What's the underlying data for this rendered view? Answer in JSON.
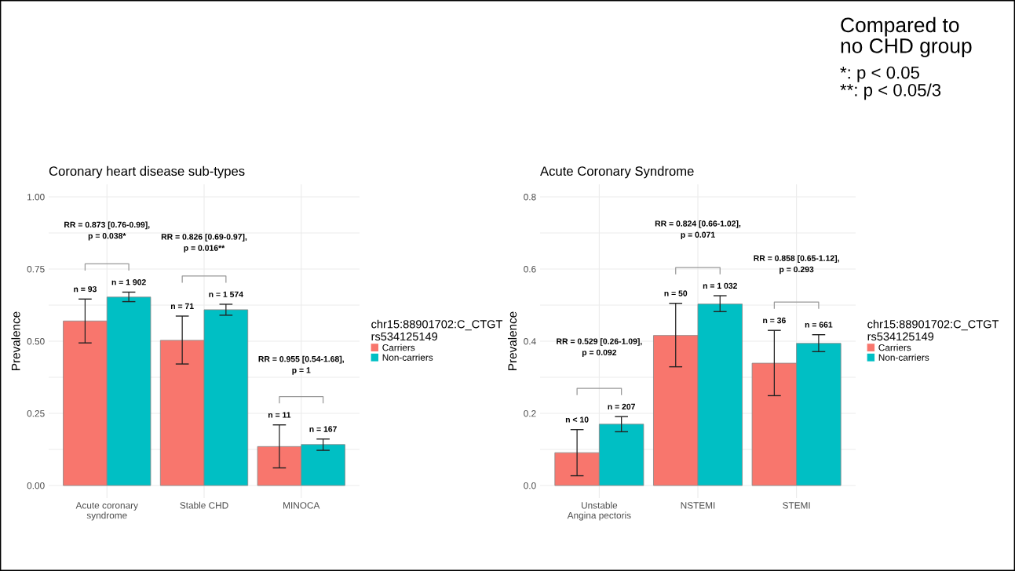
{
  "chart_data": [
    {
      "type": "bar",
      "title": "Coronary heart disease sub-types",
      "ylabel": "Prevalence",
      "legend_title": "chr15:88901702:C_CTGT\nrs534125149",
      "categories": [
        "Acute coronary\nsyndrome",
        "Stable CHD",
        "MINOCA"
      ],
      "series": [
        {
          "name": "Carriers",
          "color": "#f8766d",
          "values": [
            0.57,
            0.503,
            0.135
          ],
          "errors": [
            [
              0.494,
              0.646
            ],
            [
              0.421,
              0.587
            ],
            [
              0.061,
              0.21
            ]
          ]
        },
        {
          "name": "Non-carriers",
          "color": "#00bfc4",
          "values": [
            0.653,
            0.609,
            0.142
          ],
          "errors": [
            [
              0.637,
              0.67
            ],
            [
              0.59,
              0.628
            ],
            [
              0.122,
              0.161
            ]
          ]
        }
      ],
      "ylim": [
        -0.0435,
        1.0435
      ],
      "yticks": [
        {
          "value": 0,
          "label": "0.00"
        },
        {
          "value": 0.125,
          "label": null
        },
        {
          "value": 0.25,
          "label": "0.25"
        },
        {
          "value": 0.375,
          "label": null
        },
        {
          "value": 0.5,
          "label": "0.50"
        },
        {
          "value": 0.625,
          "label": null
        },
        {
          "value": 0.75,
          "label": "0.75"
        },
        {
          "value": 0.875,
          "label": null
        },
        {
          "value": 1,
          "label": "1.00"
        }
      ],
      "grid": true,
      "legend": "right",
      "annotations": [
        "n = 93",
        "n = 71",
        "n = 11",
        "n = 1 902",
        "n = 1 574",
        "n = 167",
        "RR = 0.873 [0.76-0.99],\np = 0.038*",
        "RR = 0.826 [0.69-0.97],\np = 0.016**",
        "RR = 0.955 [0.54-1.68],\np = 1"
      ]
    },
    {
      "type": "bar",
      "title": "Acute Coronary Syndrome",
      "ylabel": "Prevalence",
      "legend_title": "chr15:88901702:C_CTGT\nrs534125149",
      "categories": [
        "Unstable\nAngina pectoris",
        "NSTEMI",
        "STEMI"
      ],
      "series": [
        {
          "name": "Carriers",
          "color": "#f8766d",
          "values": [
            0.091,
            0.416,
            0.339
          ],
          "errors": [
            [
              0.027,
              0.155
            ],
            [
              0.329,
              0.505
            ],
            [
              0.249,
              0.43
            ]
          ]
        },
        {
          "name": "Non-carriers",
          "color": "#00bfc4",
          "values": [
            0.17,
            0.503,
            0.394
          ],
          "errors": [
            [
              0.149,
              0.191
            ],
            [
              0.482,
              0.526
            ],
            [
              0.371,
              0.418
            ]
          ]
        }
      ],
      "ylim": [
        -0.0348,
        0.8348
      ],
      "yticks": [
        {
          "value": 0,
          "label": "0.0"
        },
        {
          "value": 0.1,
          "label": null
        },
        {
          "value": 0.2,
          "label": "0.2"
        },
        {
          "value": 0.3,
          "label": null
        },
        {
          "value": 0.4,
          "label": "0.4"
        },
        {
          "value": 0.5,
          "label": null
        },
        {
          "value": 0.6,
          "label": "0.6"
        },
        {
          "value": 0.7,
          "label": null
        },
        {
          "value": 0.8,
          "label": "0.8"
        }
      ],
      "grid": true,
      "legend": "right",
      "annotations": [
        "n < 10",
        "n = 50",
        "n = 36",
        "n = 207",
        "n = 1 032",
        "n = 661",
        "RR = 0.529 [0.26-1.09],\np = 0.092",
        "RR = 0.824 [0.66-1.02],\np = 0.071",
        "RR = 0.858 [0.65-1.12],\np = 0.293",
        "Compared to\nno CHD group",
        "*: p < 0.05\n**: p < 0.05/3"
      ]
    }
  ]
}
